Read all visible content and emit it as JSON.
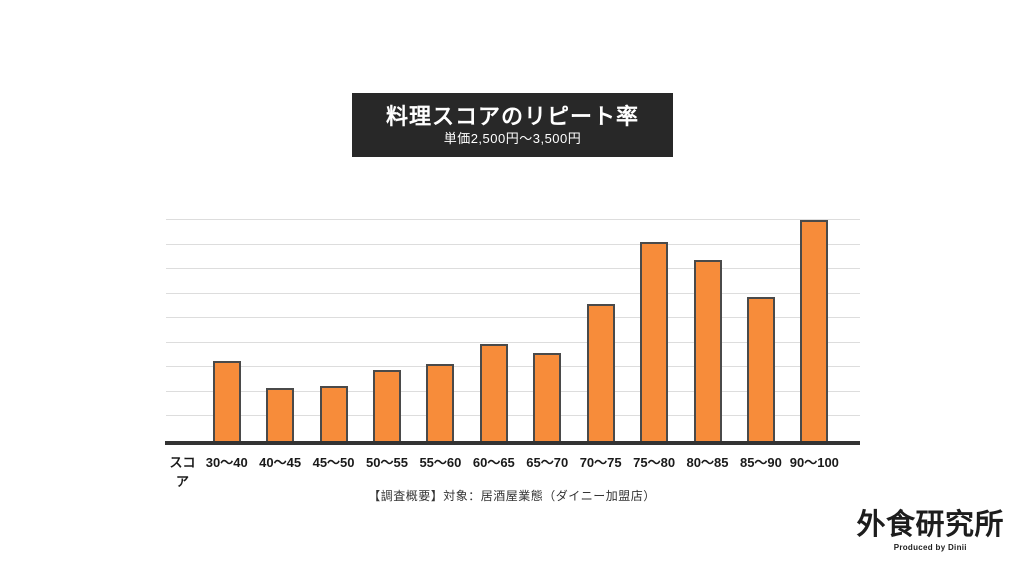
{
  "slide": {
    "title_box": {
      "title": "料理スコアのリピート率",
      "subtitle": "単価2,500円〜3,500円",
      "bg_color": "#282828",
      "text_color": "#FFFFFF"
    },
    "footnote": "【調査概要】対象：居酒屋業態（ダイニー加盟店）",
    "logo": {
      "text": "外食研究所",
      "tagline": "Produced by Dinii",
      "color": "#1D1D1D"
    }
  },
  "chart_data": {
    "type": "bar",
    "title": "料理スコアのリピート率",
    "subtitle": "単価2,500円〜3,500円",
    "x_axis_label": "スコア",
    "categories": [
      "30〜40",
      "40〜45",
      "45〜50",
      "50〜55",
      "55〜60",
      "60〜65",
      "65〜70",
      "70〜75",
      "75〜80",
      "80〜85",
      "85〜90",
      "90〜100"
    ],
    "values_relative": [
      36,
      24,
      25,
      32,
      35,
      44,
      40,
      62,
      90,
      82,
      65,
      100
    ],
    "y_axis": {
      "tick_labels_visible": false,
      "gridline_count": 9,
      "max_relative": 100
    },
    "legend": "none",
    "grid": "horizontal",
    "bar_color": "#F78C3A",
    "bar_border_color": "#4A4A4A",
    "gridline_color": "#DDDDDD",
    "axis_line_color": "#333333",
    "label_color": "#1A1A1A"
  }
}
